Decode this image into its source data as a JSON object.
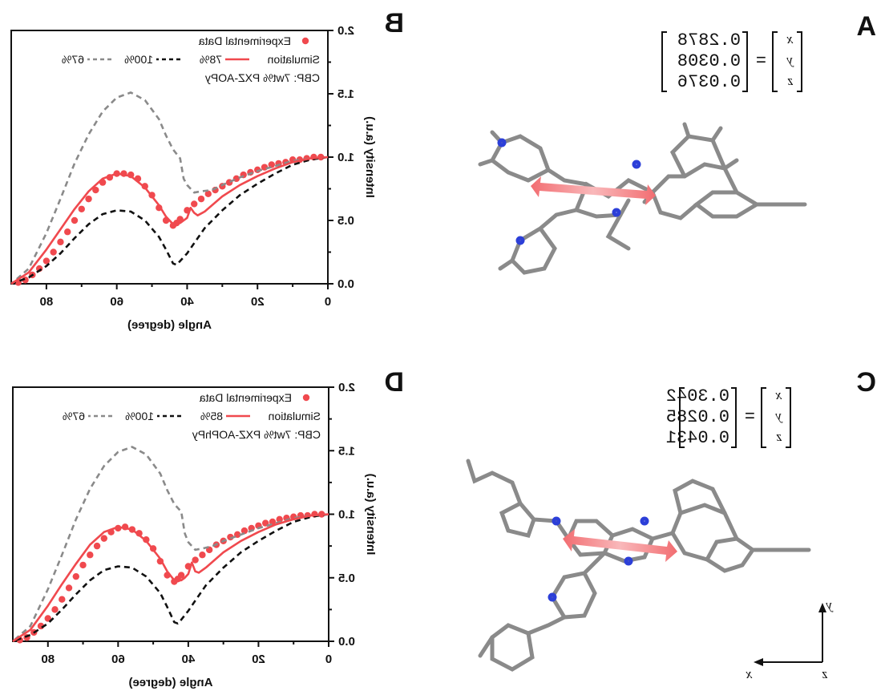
{
  "colors": {
    "experimental": "#f0494e",
    "sim_fit": "#f0494e",
    "sim_100": "#111111",
    "sim_67": "#8a8a8a",
    "tdm_arrow": "#f26d71"
  },
  "panels": [
    {
      "id": "A",
      "letter": "A",
      "matrix_rows": [
        "x",
        "y",
        "z"
      ],
      "matrix_values": [
        "0.2878",
        "0.0308",
        "0.0376"
      ],
      "molecule_icon": "molecule-pxz-aopy-icon"
    },
    {
      "id": "C",
      "letter": "C",
      "matrix_rows": [
        "x",
        "y",
        "z"
      ],
      "matrix_values": [
        "0.3042",
        "0.0285",
        "0.0431"
      ],
      "molecule_icon": "molecule-pxz-aophpy-icon"
    }
  ],
  "axes_glyph": {
    "y": "y",
    "x": "x",
    "z": "z"
  },
  "chart_data": [
    {
      "panel": "B",
      "type": "line",
      "xlabel": "Angle (degree)",
      "ylabel": "Intensity (a.u.)",
      "xlim": [
        0,
        90
      ],
      "ylim": [
        0,
        2.0
      ],
      "x_ticks": [
        "0",
        "20",
        "40",
        "60",
        "80"
      ],
      "x_tick_values": [
        0,
        20,
        40,
        60,
        80
      ],
      "y_ticks": [
        "0.0",
        "0.5",
        "1.0",
        "1.5",
        "2.0"
      ],
      "y_tick_values": [
        0,
        0.5,
        1.0,
        1.5,
        2.0
      ],
      "legend_title": "CBP: 7wt% PXZ-AOPy",
      "legend_sim_prefix": "Simulation",
      "series": [
        {
          "name": "Experimental Data",
          "style": "dots",
          "x": [
            2,
            4,
            6,
            8,
            10,
            12,
            14,
            16,
            18,
            20,
            22,
            24,
            26,
            28,
            30,
            32,
            34,
            36,
            38,
            40,
            42,
            43,
            44,
            46,
            48,
            50,
            52,
            54,
            56,
            58,
            60,
            62,
            64,
            66,
            68,
            70,
            72,
            74,
            76,
            78,
            80,
            82,
            84,
            86,
            88
          ],
          "y": [
            1.0,
            1.0,
            0.99,
            0.98,
            0.98,
            0.96,
            0.95,
            0.94,
            0.92,
            0.9,
            0.88,
            0.86,
            0.83,
            0.8,
            0.77,
            0.74,
            0.71,
            0.67,
            0.63,
            0.58,
            0.51,
            0.48,
            0.46,
            0.5,
            0.6,
            0.7,
            0.77,
            0.83,
            0.86,
            0.87,
            0.87,
            0.84,
            0.8,
            0.74,
            0.67,
            0.59,
            0.5,
            0.41,
            0.33,
            0.25,
            0.18,
            0.12,
            0.07,
            0.03,
            0.01
          ]
        },
        {
          "name": "100%",
          "style": "dash",
          "x": [
            0,
            5,
            10,
            15,
            20,
            25,
            30,
            35,
            38,
            40,
            42,
            43,
            44,
            46,
            48,
            52,
            56,
            60,
            64,
            68,
            72,
            76,
            80,
            85,
            90
          ],
          "y": [
            1.0,
            0.98,
            0.94,
            0.87,
            0.79,
            0.7,
            0.58,
            0.44,
            0.32,
            0.24,
            0.18,
            0.15,
            0.16,
            0.27,
            0.37,
            0.5,
            0.57,
            0.58,
            0.55,
            0.47,
            0.36,
            0.24,
            0.14,
            0.05,
            0.0
          ]
        },
        {
          "name": "67%",
          "style": "dash",
          "x": [
            0,
            5,
            10,
            15,
            20,
            25,
            30,
            33,
            36,
            38,
            40,
            41,
            42,
            44,
            46,
            48,
            52,
            56,
            60,
            64,
            68,
            72,
            76,
            80,
            85,
            90
          ],
          "y": [
            1.0,
            0.99,
            0.97,
            0.93,
            0.89,
            0.84,
            0.78,
            0.74,
            0.73,
            0.72,
            0.78,
            0.83,
            0.99,
            1.06,
            1.17,
            1.3,
            1.45,
            1.51,
            1.47,
            1.36,
            1.18,
            0.95,
            0.67,
            0.4,
            0.12,
            0.0
          ]
        },
        {
          "name": "78%",
          "style": "solid",
          "x": [
            0,
            5,
            10,
            15,
            20,
            25,
            30,
            35,
            37,
            38,
            39,
            40,
            41,
            42,
            44,
            46,
            48,
            52,
            56,
            60,
            64,
            68,
            72,
            76,
            80,
            85,
            90
          ],
          "y": [
            1.0,
            0.99,
            0.96,
            0.91,
            0.85,
            0.78,
            0.69,
            0.57,
            0.54,
            0.56,
            0.6,
            0.52,
            0.5,
            0.48,
            0.47,
            0.53,
            0.62,
            0.76,
            0.85,
            0.87,
            0.83,
            0.73,
            0.59,
            0.43,
            0.27,
            0.09,
            0.0
          ]
        }
      ]
    },
    {
      "panel": "D",
      "type": "line",
      "xlabel": "Angle (degree)",
      "ylabel": "Intensity (a.u.)",
      "xlim": [
        0,
        90
      ],
      "ylim": [
        0,
        2.0
      ],
      "x_ticks": [
        "0",
        "20",
        "40",
        "60",
        "80"
      ],
      "x_tick_values": [
        0,
        20,
        40,
        60,
        80
      ],
      "y_ticks": [
        "0.0",
        "0.5",
        "1.0",
        "1.5",
        "2.0"
      ],
      "y_tick_values": [
        0,
        0.5,
        1.0,
        1.5,
        2.0
      ],
      "legend_title": "CBP: 7wt% PXZ-AOPhPy",
      "legend_sim_prefix": "Simulation",
      "series": [
        {
          "name": "Experimental Data",
          "style": "dots",
          "x": [
            2,
            4,
            6,
            8,
            10,
            12,
            14,
            16,
            18,
            20,
            22,
            24,
            26,
            28,
            30,
            32,
            34,
            36,
            38,
            40,
            42,
            43,
            44,
            46,
            48,
            50,
            52,
            54,
            56,
            58,
            60,
            62,
            64,
            66,
            68,
            70,
            72,
            74,
            76,
            78,
            80,
            82,
            84,
            86,
            88
          ],
          "y": [
            1.0,
            1.0,
            0.99,
            0.99,
            0.98,
            0.97,
            0.96,
            0.94,
            0.93,
            0.91,
            0.89,
            0.87,
            0.84,
            0.82,
            0.79,
            0.76,
            0.72,
            0.68,
            0.64,
            0.59,
            0.52,
            0.49,
            0.47,
            0.52,
            0.63,
            0.73,
            0.8,
            0.85,
            0.88,
            0.9,
            0.89,
            0.86,
            0.81,
            0.75,
            0.68,
            0.6,
            0.51,
            0.42,
            0.33,
            0.25,
            0.18,
            0.12,
            0.07,
            0.03,
            0.01
          ]
        },
        {
          "name": "100%",
          "style": "dash",
          "x": [
            0,
            5,
            10,
            15,
            20,
            25,
            30,
            35,
            38,
            40,
            42,
            43,
            44,
            46,
            48,
            52,
            56,
            60,
            64,
            68,
            72,
            76,
            80,
            85,
            90
          ],
          "y": [
            1.0,
            0.98,
            0.94,
            0.87,
            0.79,
            0.7,
            0.58,
            0.44,
            0.32,
            0.24,
            0.17,
            0.14,
            0.15,
            0.27,
            0.38,
            0.51,
            0.58,
            0.59,
            0.56,
            0.48,
            0.37,
            0.25,
            0.14,
            0.05,
            0.0
          ]
        },
        {
          "name": "67%",
          "style": "dash",
          "x": [
            0,
            5,
            10,
            15,
            20,
            25,
            30,
            33,
            36,
            38,
            40,
            41,
            42,
            44,
            46,
            48,
            52,
            56,
            60,
            64,
            68,
            72,
            76,
            80,
            85,
            90
          ],
          "y": [
            1.0,
            0.99,
            0.97,
            0.93,
            0.89,
            0.84,
            0.79,
            0.75,
            0.73,
            0.72,
            0.78,
            0.85,
            1.02,
            1.08,
            1.19,
            1.32,
            1.47,
            1.53,
            1.49,
            1.38,
            1.2,
            0.96,
            0.68,
            0.41,
            0.12,
            0.0
          ]
        },
        {
          "name": "85%",
          "style": "solid",
          "x": [
            0,
            5,
            10,
            15,
            20,
            25,
            30,
            35,
            37,
            38,
            39,
            40,
            41,
            42,
            44,
            46,
            48,
            52,
            56,
            60,
            64,
            68,
            72,
            76,
            80,
            85,
            90
          ],
          "y": [
            1.0,
            0.99,
            0.96,
            0.92,
            0.86,
            0.79,
            0.7,
            0.58,
            0.54,
            0.55,
            0.62,
            0.53,
            0.5,
            0.48,
            0.48,
            0.55,
            0.65,
            0.79,
            0.88,
            0.9,
            0.86,
            0.76,
            0.61,
            0.45,
            0.28,
            0.09,
            0.0
          ]
        }
      ]
    }
  ]
}
